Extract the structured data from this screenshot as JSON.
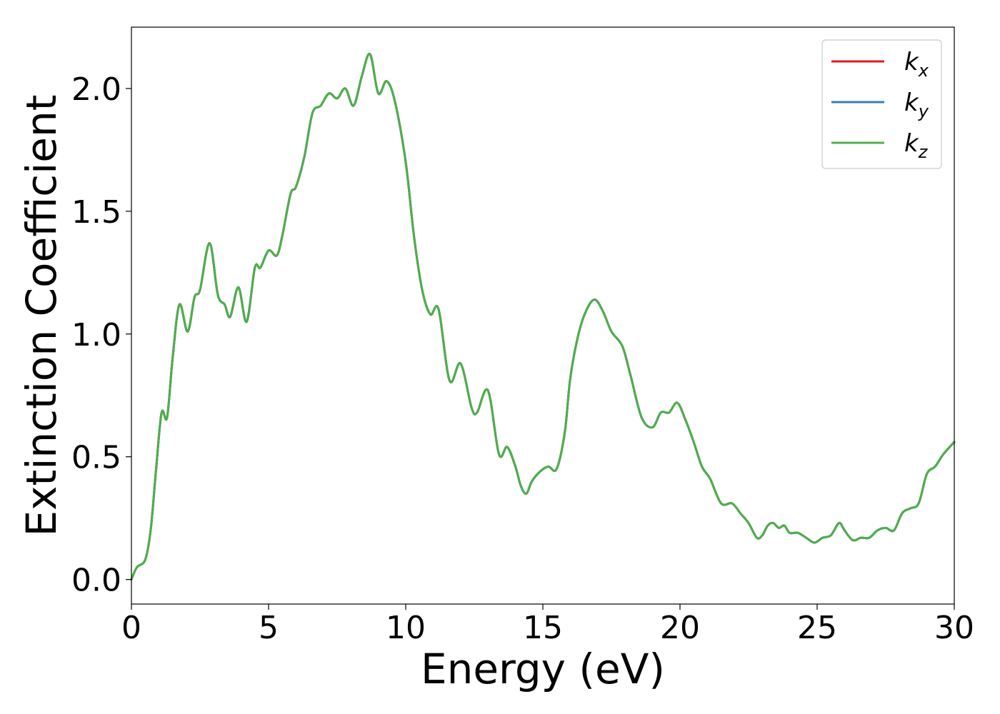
{
  "chart_data": {
    "type": "line",
    "xlabel": "Energy (eV)",
    "ylabel": "Extinction Coefficient",
    "xlim": [
      0,
      30
    ],
    "ylim": [
      -0.1,
      2.25
    ],
    "xticks": [
      0,
      5,
      10,
      15,
      20,
      25,
      30
    ],
    "yticks": [
      0.0,
      0.5,
      1.0,
      1.5,
      2.0
    ],
    "xtick_labels": [
      "0",
      "5",
      "10",
      "15",
      "20",
      "25",
      "30"
    ],
    "ytick_labels": [
      "0.0",
      "0.5",
      "1.0",
      "1.5",
      "2.0"
    ],
    "grid": false,
    "legend_position": "top-right",
    "series": [
      {
        "name": "kx",
        "label_main": "k",
        "label_sub": "x",
        "color": "#e41a1c",
        "x": [
          0,
          0.2,
          0.5,
          0.7,
          0.9,
          1.1,
          1.3,
          1.5,
          1.75,
          2.05,
          2.3,
          2.5,
          2.85,
          3.15,
          3.4,
          3.6,
          3.9,
          4.2,
          4.5,
          4.7,
          5.0,
          5.3,
          5.5,
          5.8,
          6.0,
          6.3,
          6.6,
          6.9,
          7.2,
          7.5,
          7.8,
          8.1,
          8.4,
          8.7,
          9.0,
          9.3,
          9.6,
          10.0,
          10.3,
          10.6,
          10.9,
          11.2,
          11.6,
          12.0,
          12.4,
          12.6,
          13.0,
          13.4,
          13.7,
          14.0,
          14.2,
          14.4,
          14.6,
          14.9,
          15.2,
          15.5,
          15.8,
          16.0,
          16.3,
          16.6,
          16.9,
          17.2,
          17.5,
          17.9,
          18.2,
          18.6,
          19.0,
          19.3,
          19.6,
          19.9,
          20.2,
          20.5,
          20.8,
          21.1,
          21.5,
          21.9,
          22.2,
          22.5,
          22.8,
          23.0,
          23.2,
          23.4,
          23.6,
          23.8,
          24.0,
          24.3,
          24.6,
          24.9,
          25.2,
          25.5,
          25.8,
          26.0,
          26.3,
          26.6,
          26.9,
          27.2,
          27.5,
          27.8,
          28.1,
          28.4,
          28.7,
          29.0,
          29.3,
          29.6,
          30.0
        ],
        "values": [
          0.0,
          0.05,
          0.08,
          0.2,
          0.45,
          0.68,
          0.66,
          0.9,
          1.12,
          1.01,
          1.15,
          1.18,
          1.37,
          1.16,
          1.12,
          1.07,
          1.19,
          1.05,
          1.27,
          1.27,
          1.34,
          1.32,
          1.4,
          1.57,
          1.6,
          1.72,
          1.9,
          1.93,
          1.98,
          1.96,
          2.0,
          1.93,
          2.05,
          2.14,
          1.98,
          2.03,
          1.95,
          1.7,
          1.4,
          1.18,
          1.08,
          1.1,
          0.81,
          0.88,
          0.7,
          0.68,
          0.77,
          0.51,
          0.54,
          0.46,
          0.38,
          0.35,
          0.4,
          0.44,
          0.46,
          0.45,
          0.6,
          0.82,
          1.0,
          1.1,
          1.14,
          1.09,
          1.01,
          0.95,
          0.83,
          0.66,
          0.62,
          0.68,
          0.68,
          0.72,
          0.65,
          0.56,
          0.46,
          0.41,
          0.31,
          0.31,
          0.27,
          0.23,
          0.17,
          0.18,
          0.22,
          0.23,
          0.21,
          0.22,
          0.19,
          0.19,
          0.17,
          0.15,
          0.17,
          0.18,
          0.23,
          0.2,
          0.16,
          0.17,
          0.17,
          0.2,
          0.21,
          0.2,
          0.27,
          0.29,
          0.31,
          0.43,
          0.46,
          0.51,
          0.56
        ]
      },
      {
        "name": "ky",
        "label_main": "k",
        "label_sub": "y",
        "color": "#377eb8",
        "x": [
          0,
          0.2,
          0.5,
          0.7,
          0.9,
          1.1,
          1.3,
          1.5,
          1.75,
          2.05,
          2.3,
          2.5,
          2.85,
          3.15,
          3.4,
          3.6,
          3.9,
          4.2,
          4.5,
          4.7,
          5.0,
          5.3,
          5.5,
          5.8,
          6.0,
          6.3,
          6.6,
          6.9,
          7.2,
          7.5,
          7.8,
          8.1,
          8.4,
          8.7,
          9.0,
          9.3,
          9.6,
          10.0,
          10.3,
          10.6,
          10.9,
          11.2,
          11.6,
          12.0,
          12.4,
          12.6,
          13.0,
          13.4,
          13.7,
          14.0,
          14.2,
          14.4,
          14.6,
          14.9,
          15.2,
          15.5,
          15.8,
          16.0,
          16.3,
          16.6,
          16.9,
          17.2,
          17.5,
          17.9,
          18.2,
          18.6,
          19.0,
          19.3,
          19.6,
          19.9,
          20.2,
          20.5,
          20.8,
          21.1,
          21.5,
          21.9,
          22.2,
          22.5,
          22.8,
          23.0,
          23.2,
          23.4,
          23.6,
          23.8,
          24.0,
          24.3,
          24.6,
          24.9,
          25.2,
          25.5,
          25.8,
          26.0,
          26.3,
          26.6,
          26.9,
          27.2,
          27.5,
          27.8,
          28.1,
          28.4,
          28.7,
          29.0,
          29.3,
          29.6,
          30.0
        ],
        "values": [
          0.0,
          0.05,
          0.08,
          0.2,
          0.45,
          0.68,
          0.66,
          0.9,
          1.12,
          1.01,
          1.15,
          1.18,
          1.37,
          1.16,
          1.12,
          1.07,
          1.19,
          1.05,
          1.27,
          1.27,
          1.34,
          1.32,
          1.4,
          1.57,
          1.6,
          1.72,
          1.9,
          1.93,
          1.98,
          1.96,
          2.0,
          1.93,
          2.05,
          2.14,
          1.98,
          2.03,
          1.95,
          1.7,
          1.4,
          1.18,
          1.08,
          1.1,
          0.81,
          0.88,
          0.7,
          0.68,
          0.77,
          0.51,
          0.54,
          0.46,
          0.38,
          0.35,
          0.4,
          0.44,
          0.46,
          0.45,
          0.6,
          0.82,
          1.0,
          1.1,
          1.14,
          1.09,
          1.01,
          0.95,
          0.83,
          0.66,
          0.62,
          0.68,
          0.68,
          0.72,
          0.65,
          0.56,
          0.46,
          0.41,
          0.31,
          0.31,
          0.27,
          0.23,
          0.17,
          0.18,
          0.22,
          0.23,
          0.21,
          0.22,
          0.19,
          0.19,
          0.17,
          0.15,
          0.17,
          0.18,
          0.23,
          0.2,
          0.16,
          0.17,
          0.17,
          0.2,
          0.21,
          0.2,
          0.27,
          0.29,
          0.31,
          0.43,
          0.46,
          0.51,
          0.56
        ]
      },
      {
        "name": "kz",
        "label_main": "k",
        "label_sub": "z",
        "color": "#4daf4a",
        "x": [
          0,
          0.2,
          0.5,
          0.7,
          0.9,
          1.1,
          1.3,
          1.5,
          1.75,
          2.05,
          2.3,
          2.5,
          2.85,
          3.15,
          3.4,
          3.6,
          3.9,
          4.2,
          4.5,
          4.7,
          5.0,
          5.3,
          5.5,
          5.8,
          6.0,
          6.3,
          6.6,
          6.9,
          7.2,
          7.5,
          7.8,
          8.1,
          8.4,
          8.7,
          9.0,
          9.3,
          9.6,
          10.0,
          10.3,
          10.6,
          10.9,
          11.2,
          11.6,
          12.0,
          12.4,
          12.6,
          13.0,
          13.4,
          13.7,
          14.0,
          14.2,
          14.4,
          14.6,
          14.9,
          15.2,
          15.5,
          15.8,
          16.0,
          16.3,
          16.6,
          16.9,
          17.2,
          17.5,
          17.9,
          18.2,
          18.6,
          19.0,
          19.3,
          19.6,
          19.9,
          20.2,
          20.5,
          20.8,
          21.1,
          21.5,
          21.9,
          22.2,
          22.5,
          22.8,
          23.0,
          23.2,
          23.4,
          23.6,
          23.8,
          24.0,
          24.3,
          24.6,
          24.9,
          25.2,
          25.5,
          25.8,
          26.0,
          26.3,
          26.6,
          26.9,
          27.2,
          27.5,
          27.8,
          28.1,
          28.4,
          28.7,
          29.0,
          29.3,
          29.6,
          30.0
        ],
        "values": [
          0.0,
          0.05,
          0.08,
          0.2,
          0.45,
          0.68,
          0.66,
          0.9,
          1.12,
          1.01,
          1.15,
          1.18,
          1.37,
          1.16,
          1.12,
          1.07,
          1.19,
          1.05,
          1.27,
          1.27,
          1.34,
          1.32,
          1.4,
          1.57,
          1.6,
          1.72,
          1.9,
          1.93,
          1.98,
          1.96,
          2.0,
          1.93,
          2.05,
          2.14,
          1.98,
          2.03,
          1.95,
          1.7,
          1.4,
          1.18,
          1.08,
          1.1,
          0.81,
          0.88,
          0.7,
          0.68,
          0.77,
          0.51,
          0.54,
          0.46,
          0.38,
          0.35,
          0.4,
          0.44,
          0.46,
          0.45,
          0.6,
          0.82,
          1.0,
          1.1,
          1.14,
          1.09,
          1.01,
          0.95,
          0.83,
          0.66,
          0.62,
          0.68,
          0.68,
          0.72,
          0.65,
          0.56,
          0.46,
          0.41,
          0.31,
          0.31,
          0.27,
          0.23,
          0.17,
          0.18,
          0.22,
          0.23,
          0.21,
          0.22,
          0.19,
          0.19,
          0.17,
          0.15,
          0.17,
          0.18,
          0.23,
          0.2,
          0.16,
          0.17,
          0.17,
          0.2,
          0.21,
          0.2,
          0.27,
          0.29,
          0.31,
          0.43,
          0.46,
          0.51,
          0.56
        ]
      }
    ]
  }
}
